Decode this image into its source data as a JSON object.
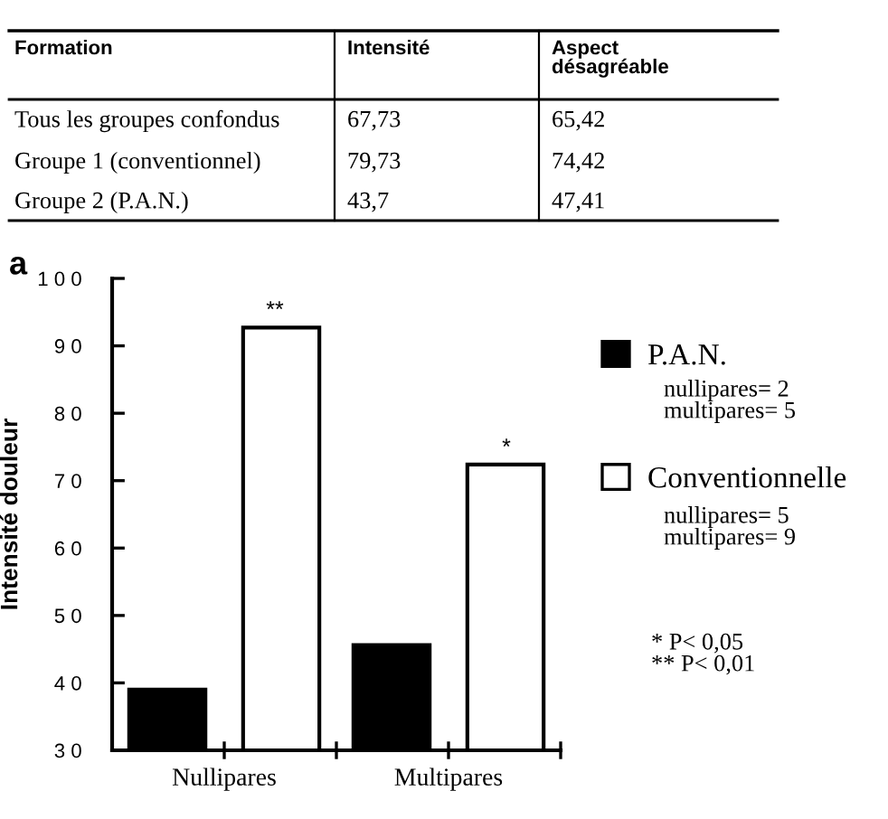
{
  "chart_data": [
    {
      "type": "other",
      "annotations": [
        "Formation",
        "Intensité",
        "Aspect\ndésagréable",
        "Tous les groupes confondus",
        "67,73",
        "65,42",
        "Groupe 1 (conventionnel)",
        "79,73",
        "74,42",
        "Groupe 2 (P.A.N.)",
        "43,7",
        "47,41"
      ]
    },
    {
      "type": "bar",
      "categories": [
        "Nullipares",
        "Multipares"
      ],
      "series": [
        {
          "name": "P.A.N.",
          "color": "#000000",
          "values": [
            39,
            45.6
          ]
        },
        {
          "name": "Conventionnelle",
          "color": "#ffffff",
          "values": [
            92.7,
            72.4
          ]
        }
      ],
      "ylabel": "Intensité douleur",
      "ylim": [
        30,
        100
      ],
      "yticks": [
        30,
        40,
        50,
        60,
        70,
        80,
        90,
        100
      ],
      "grid": false,
      "legend": "right",
      "annotations": [
        "a",
        "nullipares= 2\nmultipares= 5",
        "nullipares= 5\nmultipares= 9",
        "* P< 0,05\n** P< 0,01",
        "**",
        "*"
      ]
    }
  ]
}
